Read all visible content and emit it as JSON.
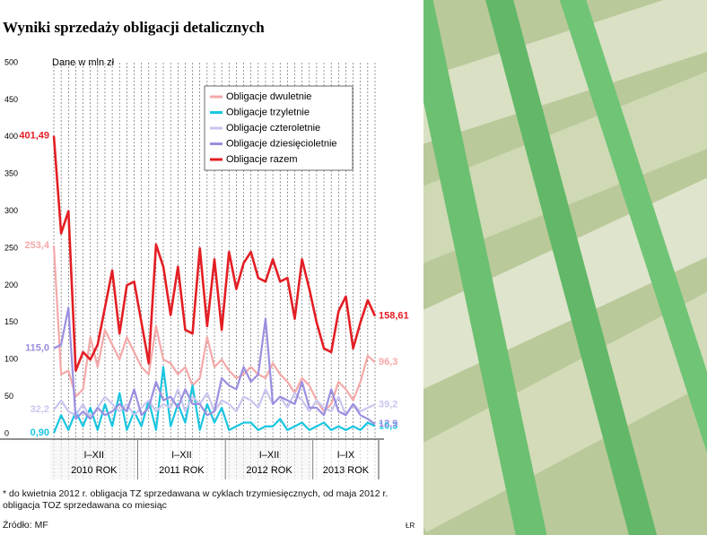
{
  "chart_data": {
    "type": "line",
    "title": "Wyniki sprzedaży obligacji detalicznych",
    "subtitle": "Dane w mln zł",
    "categories": [
      null,
      null,
      null,
      null,
      null,
      null,
      null,
      null,
      null,
      null,
      null,
      null,
      null,
      null,
      null,
      null,
      null,
      null,
      null,
      null,
      null,
      null,
      null,
      null,
      null,
      null,
      null,
      null,
      null,
      null,
      null,
      null,
      null,
      null,
      null,
      null,
      null,
      null,
      null,
      null,
      null,
      null,
      null,
      null,
      null
    ],
    "groups": [
      {
        "label": "I–XII",
        "year": "2010 ROK",
        "count": 12
      },
      {
        "label": "I–XII",
        "year": "2011 ROK",
        "count": 12
      },
      {
        "label": "I–XII",
        "year": "2012 ROK",
        "count": 12
      },
      {
        "label": "I–IX",
        "year": "2013 ROK",
        "count": 9
      }
    ],
    "ylim": [
      0,
      500
    ],
    "yticks": [
      0,
      50,
      100,
      150,
      200,
      250,
      300,
      350,
      400,
      450,
      500
    ],
    "legend": "top-right",
    "series": [
      {
        "name": "Obligacje dwuletnie",
        "color": "#f4a9a8",
        "first_label": "253,4",
        "last_label": "96,3",
        "values": [
          253.4,
          80,
          85,
          50,
          60,
          130,
          90,
          140,
          120,
          100,
          130,
          110,
          90,
          80,
          145,
          100,
          95,
          80,
          90,
          65,
          75,
          130,
          90,
          100,
          85,
          75,
          80,
          90,
          80,
          75,
          95,
          80,
          70,
          55,
          75,
          65,
          45,
          30,
          40,
          70,
          60,
          45,
          70,
          105,
          96.3
        ]
      },
      {
        "name": "Obligacje trzyletnie",
        "color": "#19c6e0",
        "first_label": "0,90",
        "last_label": "10,3",
        "values": [
          0.9,
          25,
          5,
          30,
          10,
          35,
          5,
          40,
          10,
          55,
          5,
          30,
          10,
          45,
          5,
          90,
          10,
          40,
          15,
          65,
          5,
          40,
          15,
          35,
          5,
          10,
          15,
          15,
          5,
          10,
          10,
          20,
          5,
          10,
          15,
          5,
          10,
          15,
          5,
          10,
          5,
          10,
          5,
          15,
          10.3
        ]
      },
      {
        "name": "Obligacje czteroletnie",
        "color": "#c8c6ee",
        "first_label": "32,2",
        "last_label": "39,2",
        "values": [
          32.2,
          45,
          30,
          25,
          40,
          20,
          35,
          50,
          40,
          30,
          40,
          25,
          35,
          45,
          30,
          40,
          35,
          60,
          30,
          50,
          40,
          55,
          30,
          45,
          40,
          30,
          50,
          45,
          35,
          60,
          40,
          50,
          35,
          55,
          45,
          30,
          45,
          35,
          30,
          50,
          25,
          40,
          30,
          35,
          39.2
        ]
      },
      {
        "name": "Obligacje dziesięcioletnie",
        "color": "#9a8fe0",
        "first_label": "115,0",
        "last_label": "12,9",
        "values": [
          115.0,
          120,
          170,
          20,
          30,
          20,
          35,
          25,
          30,
          40,
          30,
          60,
          25,
          35,
          70,
          45,
          50,
          35,
          60,
          40,
          40,
          25,
          30,
          75,
          65,
          60,
          90,
          70,
          80,
          155,
          40,
          50,
          45,
          40,
          70,
          35,
          35,
          25,
          60,
          30,
          25,
          40,
          25,
          20,
          12.9
        ]
      },
      {
        "name": "Obligacje razem",
        "color": "#e31e24",
        "first_label": "401,49",
        "last_label": "158,61",
        "values": [
          401.49,
          270,
          300,
          85,
          110,
          100,
          120,
          170,
          220,
          135,
          200,
          205,
          150,
          95,
          255,
          225,
          160,
          225,
          140,
          135,
          250,
          145,
          235,
          140,
          245,
          195,
          230,
          245,
          210,
          205,
          235,
          205,
          210,
          155,
          235,
          195,
          150,
          115,
          110,
          165,
          185,
          115,
          150,
          180,
          158.61
        ]
      }
    ],
    "footnote": "* do kwietnia 2012 r. obligacja TZ sprzedawana w cyklach trzymiesięcznych, od maja 2012 r. obligacja TOZ sprzedawana co miesiąc",
    "source": "Źródło: MF",
    "credit": "ŁR"
  }
}
